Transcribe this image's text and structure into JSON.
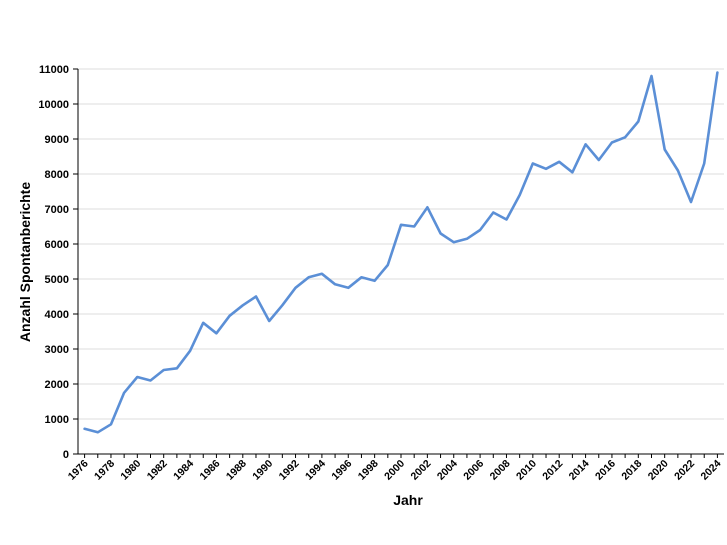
{
  "chart_data": {
    "type": "line",
    "xlabel": "Jahr",
    "ylabel": "Anzahl Spontanberichte",
    "ylim": [
      0,
      11000
    ],
    "yticks": [
      "0",
      "1000",
      "2000",
      "3000",
      "4000",
      "5000",
      "6000",
      "7000",
      "8000",
      "9000",
      "10000",
      "11000"
    ],
    "xticks": [
      "1976",
      "1978",
      "1980",
      "1982",
      "1984",
      "1986",
      "1988",
      "1990",
      "1992",
      "1994",
      "1996",
      "1998",
      "2000",
      "2002",
      "2004",
      "2006",
      "2008",
      "2010",
      "2012",
      "2014",
      "2016",
      "2018",
      "2020",
      "2022",
      "2024"
    ],
    "grid": "horizontal",
    "series": [
      {
        "color": "#5b8fd6",
        "x": [
          1976,
          1977,
          1978,
          1979,
          1980,
          1981,
          1982,
          1983,
          1984,
          1985,
          1986,
          1987,
          1988,
          1989,
          1990,
          1991,
          1992,
          1993,
          1994,
          1995,
          1996,
          1997,
          1998,
          1999,
          2000,
          2001,
          2002,
          2003,
          2004,
          2005,
          2006,
          2007,
          2008,
          2009,
          2010,
          2011,
          2012,
          2013,
          2014,
          2015,
          2016,
          2017,
          2018,
          2019,
          2020,
          2021,
          2022,
          2023,
          2024
        ],
        "values": [
          720,
          620,
          850,
          1750,
          2200,
          2100,
          2400,
          2450,
          2950,
          3750,
          3450,
          3950,
          4250,
          4500,
          3800,
          4250,
          4750,
          5050,
          5150,
          4850,
          4750,
          5050,
          4950,
          5400,
          6550,
          6500,
          7050,
          6300,
          6050,
          6150,
          6400,
          6900,
          6700,
          7400,
          8300,
          8150,
          8350,
          8050,
          8850,
          8400,
          8900,
          9050,
          9500,
          10800,
          8700,
          8100,
          7200,
          8300,
          10900
        ]
      }
    ]
  }
}
